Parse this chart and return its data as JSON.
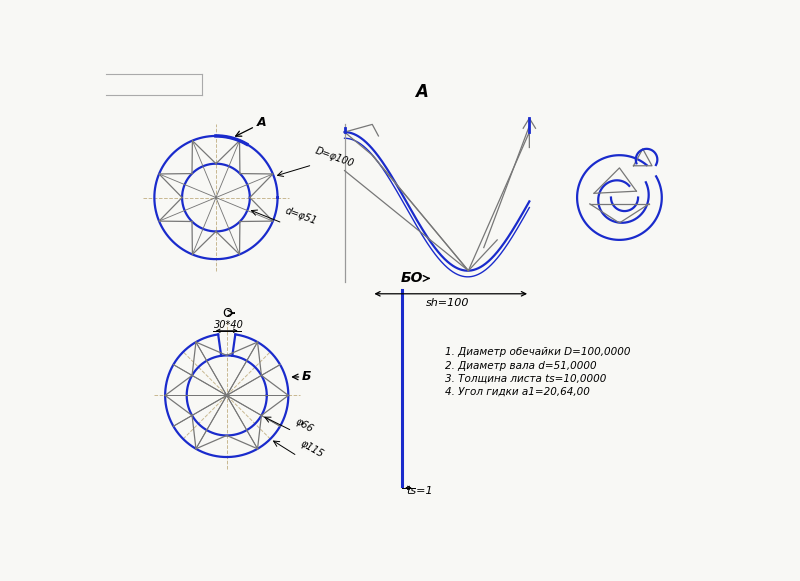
{
  "bg_color": "#f8f8f5",
  "blue": "#1a2bcc",
  "gray": "#777777",
  "dashed_color": "#c8b890",
  "notes": [
    "1. Диаметр обечайки D=100,0000",
    "2. Диаметр вала d=51,0000",
    "3. Толщина листа ts=10,0000",
    "4. Угол гидки a1=20,64,00"
  ]
}
